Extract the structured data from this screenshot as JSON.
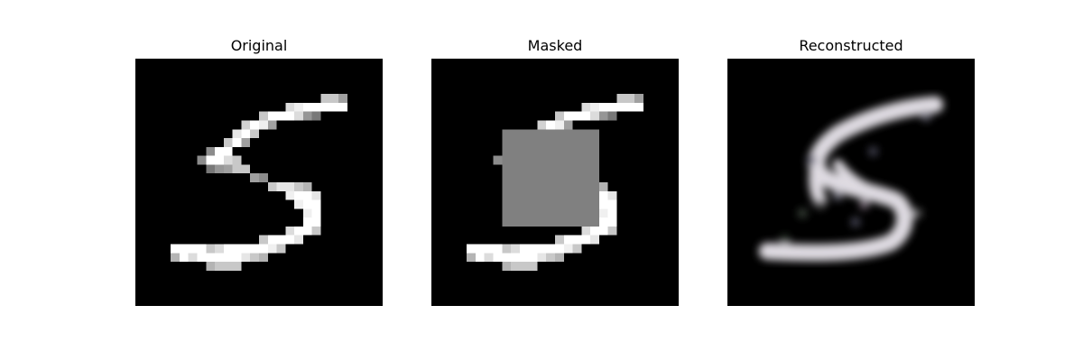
{
  "panels": [
    {
      "title": "Original"
    },
    {
      "title": "Masked"
    },
    {
      "title": "Reconstructed"
    }
  ],
  "colors": {
    "background": "#000000",
    "stroke": "#ffffff",
    "mask": "#808080"
  }
}
